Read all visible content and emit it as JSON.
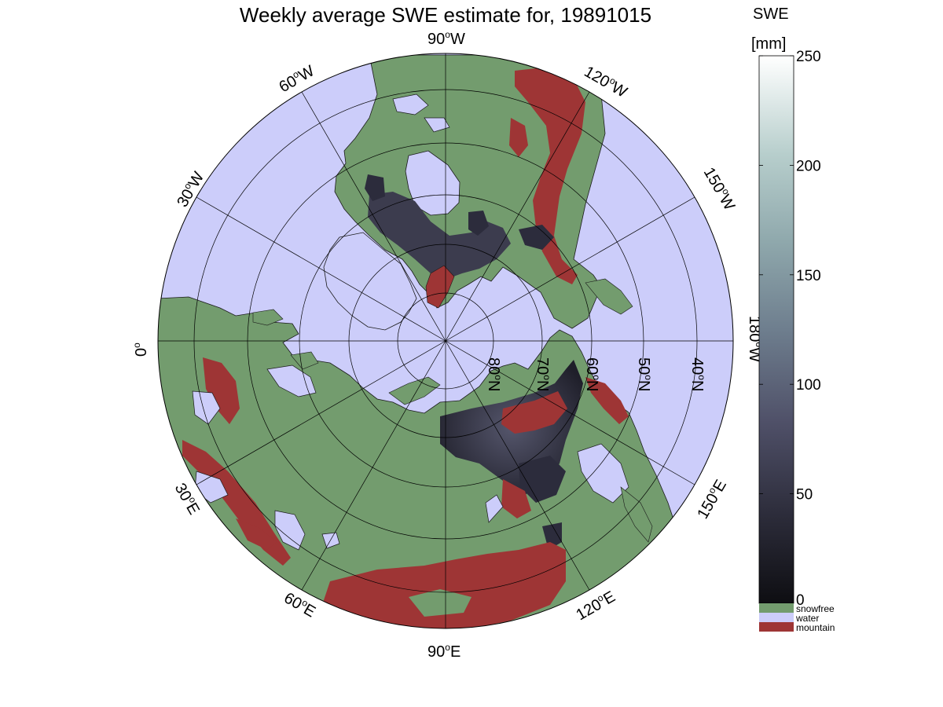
{
  "title": "Weekly average SWE estimate for, 19891015",
  "colorbar": {
    "label_line1": "SWE",
    "label_line2": "[mm]",
    "range": [
      0,
      250
    ],
    "ticks": [
      "0",
      "50",
      "100",
      "150",
      "200",
      "250"
    ],
    "tick_values": [
      0,
      50,
      100,
      150,
      200,
      250
    ],
    "gradient": [
      "#0e0e12",
      "#2c2c3a",
      "#4f5068",
      "#6e7e8e",
      "#8fa8ac",
      "#b7cecc",
      "#ffffff"
    ],
    "categories": [
      {
        "label": "snowfree",
        "color": "#739c6e"
      },
      {
        "label": "water",
        "color": "#cccdfa"
      },
      {
        "label": "mountain",
        "color": "#9e3535"
      }
    ]
  },
  "map": {
    "projection": "north polar stereographic",
    "colors": {
      "water": "#cccdfa",
      "land": "#739c6e",
      "mountain": "#9e3535",
      "snow_dark": "#2c2c3c",
      "snow_mid": "#55566c"
    },
    "longitude_labels": [
      {
        "deg": "0",
        "text": "0",
        "degsign": "o",
        "suffix": ""
      },
      {
        "deg": "30W",
        "text": "30",
        "degsign": "o",
        "suffix": "W"
      },
      {
        "deg": "60W",
        "text": "60",
        "degsign": "o",
        "suffix": "W"
      },
      {
        "deg": "90W",
        "text": "90",
        "degsign": "o",
        "suffix": "W"
      },
      {
        "deg": "120W",
        "text": "120",
        "degsign": "o",
        "suffix": "W"
      },
      {
        "deg": "150W",
        "text": "150",
        "degsign": "o",
        "suffix": "W"
      },
      {
        "deg": "180W",
        "text": "180",
        "degsign": "o",
        "suffix": "W"
      },
      {
        "deg": "150E",
        "text": "150",
        "degsign": "o",
        "suffix": "E"
      },
      {
        "deg": "120E",
        "text": "120",
        "degsign": "o",
        "suffix": "E"
      },
      {
        "deg": "90E",
        "text": "90",
        "degsign": "o",
        "suffix": "E"
      },
      {
        "deg": "60E",
        "text": "60",
        "degsign": "o",
        "suffix": "E"
      },
      {
        "deg": "30E",
        "text": "30",
        "degsign": "o",
        "suffix": "E"
      }
    ],
    "latitude_labels": [
      {
        "lat": 80,
        "text": "80",
        "degsign": "o",
        "suffix": "N"
      },
      {
        "lat": 70,
        "text": "70",
        "degsign": "o",
        "suffix": "N"
      },
      {
        "lat": 60,
        "text": "60",
        "degsign": "o",
        "suffix": "N"
      },
      {
        "lat": 50,
        "text": "50",
        "degsign": "o",
        "suffix": "N"
      },
      {
        "lat": 40,
        "text": "40",
        "degsign": "o",
        "suffix": "N"
      }
    ]
  }
}
